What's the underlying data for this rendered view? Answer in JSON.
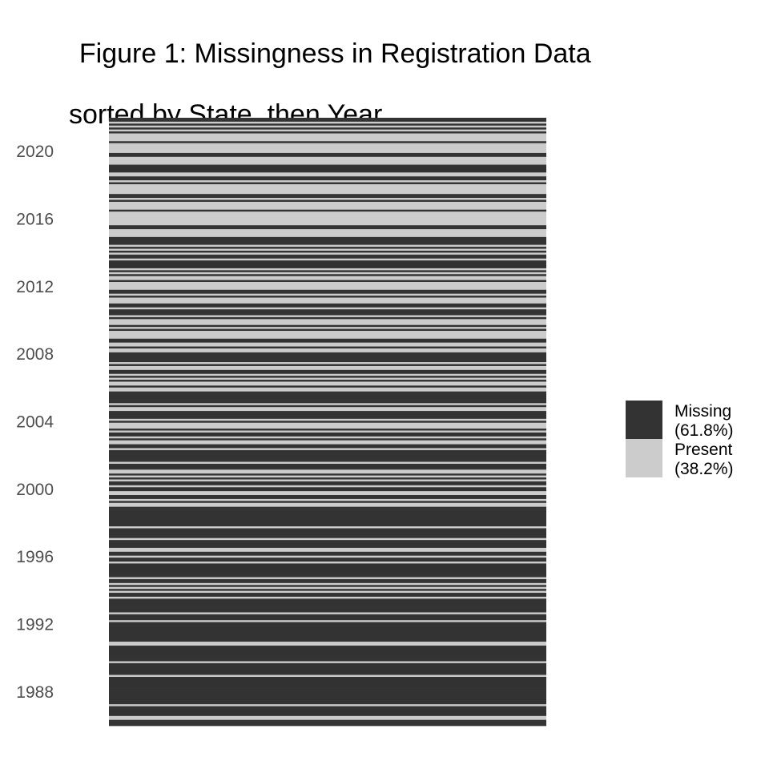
{
  "chart_data": {
    "type": "heatmap",
    "title": "Figure 1: Missingness in Registration Data",
    "subtitle": "sorted by State, then Year",
    "xlabel": "",
    "ylabel": "",
    "y_ticks": [
      "2020",
      "2016",
      "2012",
      "2008",
      "2004",
      "2000",
      "1996",
      "1992",
      "1988"
    ],
    "ylim": [
      1986,
      2022
    ],
    "grid": false,
    "legend": {
      "placement": "right",
      "entries": [
        {
          "label": "Missing",
          "pct": "(61.8%)",
          "color": "#333333"
        },
        {
          "label": "Present",
          "pct": "(38.2%)",
          "color": "#cccccc"
        }
      ]
    },
    "rows_top_to_bottom": "MMPMPMPMPPPPMPPPPPMMPPPPMMMMPPMMPMPPPPPMMPMPPPPMPPPPPPPMMPPPPMMMMPMPMPMMPMMMMPMPMPPMPPPPMMPMPPPMMPMMMPMPPPMPMPPPPMMPPMPPMMMMMPMPPMMPMPMPPMPPMMMMMMPMPPMMMMPMPPPMPMMPMPPMMPMMMMMMPMMMPPMPMPMMPMMPPMMPMPPMMMMMMMMMMPMMMMMPMMMMPPMMPMMPMMMMMMMPMMPMPMPMMPMMMMMMMPMMMPMMMMMMMMMMPPMMMMMMMMPMMMMMMPMMMMMMMMMMMMMMPMMMMMPPMMM"
  }
}
